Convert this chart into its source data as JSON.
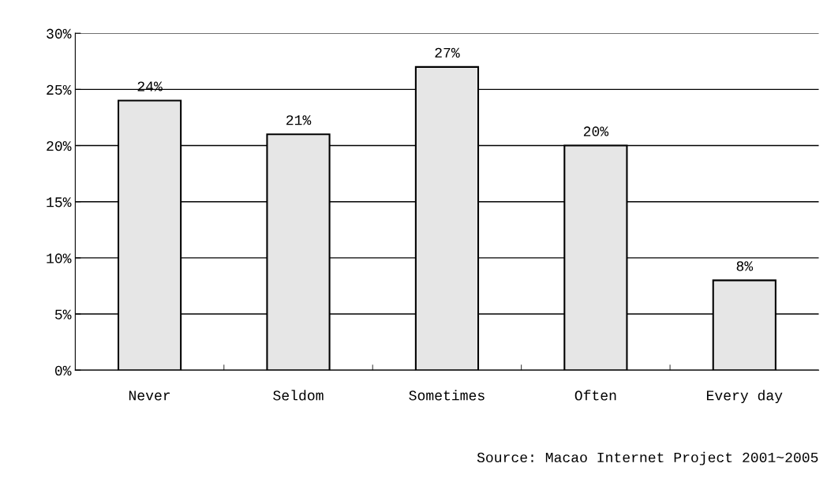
{
  "chart_data": {
    "type": "bar",
    "categories": [
      "Never",
      "Seldom",
      "Sometimes",
      "Often",
      "Every day"
    ],
    "values": [
      24,
      21,
      27,
      20,
      8
    ],
    "value_labels": [
      "24%",
      "21%",
      "27%",
      "20%",
      "8%"
    ],
    "color": "#e6e6e6",
    "ylim": [
      0,
      30
    ],
    "yticks": [
      {
        "value": 0,
        "label": "0%"
      },
      {
        "value": 5,
        "label": "5%"
      },
      {
        "value": 10,
        "label": "10%"
      },
      {
        "value": 15,
        "label": "15%"
      },
      {
        "value": 20,
        "label": "20%"
      },
      {
        "value": 25,
        "label": "25%"
      },
      {
        "value": 30,
        "label": "30%"
      }
    ],
    "grid": "y",
    "legend": false,
    "annotations": [
      "Source: Macao Internet Project 2001~2005"
    ]
  }
}
